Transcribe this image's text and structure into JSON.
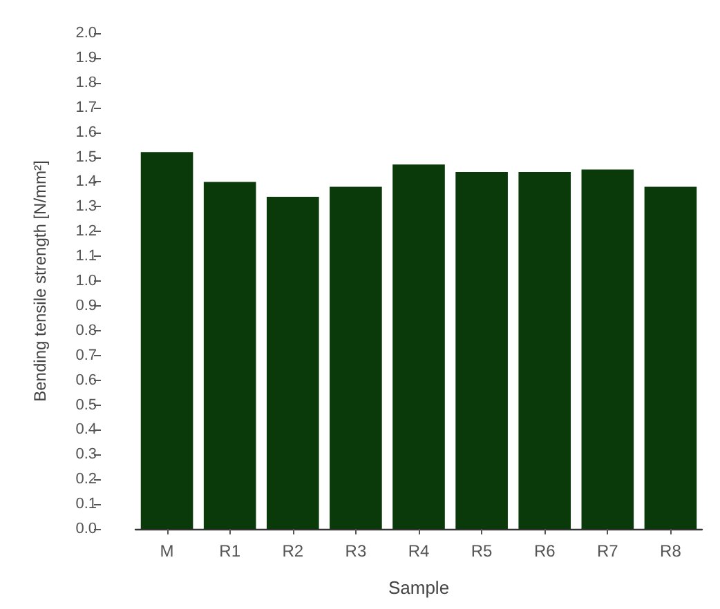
{
  "chart_data": {
    "type": "bar",
    "xlabel": "Sample",
    "ylabel": "Bending tensile strength [N/mm²]",
    "categories": [
      "M",
      "R1",
      "R2",
      "R3",
      "R4",
      "R5",
      "R6",
      "R7",
      "R8"
    ],
    "values": [
      1.52,
      1.4,
      1.34,
      1.38,
      1.47,
      1.44,
      1.44,
      1.45,
      1.38
    ],
    "color": "#0a3a0a",
    "ylim": [
      0,
      2
    ],
    "yticks": [
      {
        "value": 0,
        "label": "0.0"
      },
      0.1,
      0.2,
      0.3,
      0.4,
      0.5,
      0.6,
      0.7,
      0.8,
      0.9,
      {
        "value": 1,
        "label": "1.0"
      },
      1.1,
      1.2,
      1.3,
      1.4,
      1.5,
      1.6,
      1.7,
      1.8,
      1.9,
      {
        "value": 2,
        "label": "2.0"
      }
    ]
  }
}
